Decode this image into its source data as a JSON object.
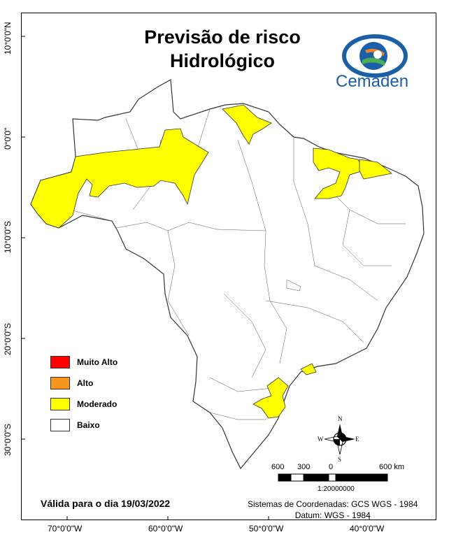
{
  "title": {
    "line1": "Previsão de risco",
    "line2": "Hidrológico"
  },
  "logo": {
    "name": "Cemaden",
    "colors": {
      "blue": "#1a5fa8",
      "orange": "#e8862a",
      "green": "#4caf50"
    }
  },
  "latitude_labels": [
    "10°0'0\"N",
    "0°0'0\"",
    "10°0'0\"S",
    "20°0'0\"S",
    "30°0'0\"S"
  ],
  "longitude_labels": [
    "70°0'0\"W",
    "60°0'0\"W",
    "50°0'0\"W",
    "40°0'0\"W"
  ],
  "legend": [
    {
      "label": "Muito Alto",
      "color": "#ff0000"
    },
    {
      "label": "Alto",
      "color": "#f7961e"
    },
    {
      "label": "Moderado",
      "color": "#ffff00"
    },
    {
      "label": "Baixo",
      "color": "#ffffff"
    }
  ],
  "region_colors": {
    "moderado": "#ffff00",
    "baixo": "#ffffff",
    "border": "#333333"
  },
  "north_arrow": {
    "n": "N",
    "s": "S",
    "e": "E",
    "w": "W"
  },
  "scale_bar": {
    "labels": [
      "600",
      "300",
      "0",
      "600 km"
    ],
    "ratio": "1:20000000"
  },
  "valid_date": "Válida para o dia 19/03/2022",
  "coordinate_system": {
    "line1": "Sistemas de Coordenadas: GCS WGS - 1984",
    "line2": "Datum: WGS - 1984"
  }
}
